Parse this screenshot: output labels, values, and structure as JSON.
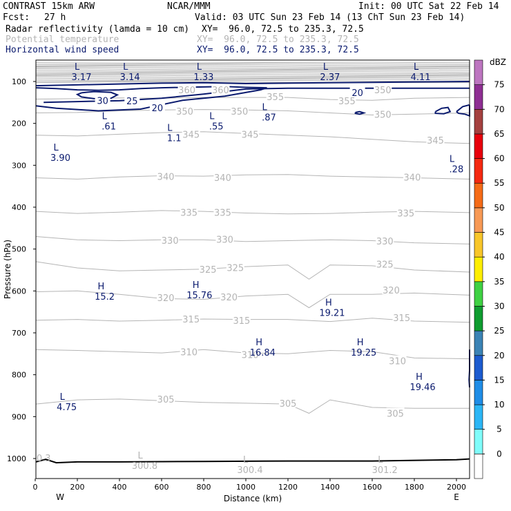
{
  "header": {
    "line1_left": "CONTRAST 15km ARW",
    "line1_center": "NCAR/MMM",
    "line1_right": "Init: 00 UTC Sat 22 Feb 14",
    "fcst_label": "Fcst:",
    "fcst_value": "27 h",
    "valid": "Valid: 03 UTC Sun 23 Feb 14 (13 ChT Sun 23 Feb 14)",
    "field1": "Radar reflectivity (lamda = 10 cm)",
    "field1_xy": "XY=  96.0, 72.5 to 235.3, 72.5",
    "field2": "Potential temperature",
    "field2_xy": "XY=  96.0, 72.5 to 235.3, 72.5",
    "field3": "Horizontal wind speed",
    "field3_xy": "XY=  96.0, 72.5 to 235.3, 72.5"
  },
  "colors": {
    "theta": "#b4b4b4",
    "wind": "#0a1a6e",
    "axis": "#000000",
    "terrain": "#000000"
  },
  "chart_data": {
    "type": "line",
    "xlabel": "Distance (km)",
    "ylabel": "Pressure (hPa)",
    "xlim": [
      0,
      2080
    ],
    "ylim": [
      1050,
      50
    ],
    "y_scale": "linear (pressure, increasing downward)",
    "x_ticks": [
      0,
      200,
      400,
      600,
      800,
      1000,
      1200,
      1400,
      1600,
      1800,
      2000
    ],
    "y_ticks": [
      100,
      200,
      300,
      400,
      500,
      600,
      700,
      800,
      900,
      1000
    ],
    "x_end_labels": {
      "left": "W",
      "right": "E"
    },
    "theta_contours": [
      {
        "name": "355",
        "x": [
          0,
          200,
          400,
          600,
          800,
          1000,
          1200,
          1400,
          1600,
          1800,
          2080
        ],
        "y": [
          142,
          141,
          139,
          140,
          138,
          138,
          138,
          143,
          145,
          140,
          138
        ]
      },
      {
        "name": "350",
        "x": [
          0,
          200,
          400,
          600,
          800,
          1000,
          1200,
          1400,
          1600,
          1800,
          2080
        ],
        "y": [
          175,
          174,
          170,
          168,
          167,
          168,
          170,
          175,
          180,
          178,
          175
        ]
      },
      {
        "name": "345",
        "x": [
          0,
          200,
          400,
          600,
          800,
          1000,
          1200,
          1400,
          1600,
          1800,
          2080
        ],
        "y": [
          228,
          230,
          226,
          222,
          220,
          224,
          228,
          232,
          238,
          244,
          248
        ]
      },
      {
        "name": "340",
        "x": [
          0,
          200,
          400,
          600,
          800,
          1000,
          1200,
          1400,
          1600,
          1800,
          2080
        ],
        "y": [
          330,
          333,
          328,
          325,
          326,
          323,
          322,
          326,
          328,
          330,
          333
        ]
      },
      {
        "name": "335",
        "x": [
          0,
          200,
          400,
          600,
          800,
          1000,
          1200,
          1400,
          1600,
          1800,
          2080
        ],
        "y": [
          410,
          415,
          412,
          408,
          410,
          414,
          416,
          415,
          412,
          410,
          413
        ]
      },
      {
        "name": "330",
        "x": [
          0,
          200,
          400,
          600,
          800,
          1000,
          1200,
          1400,
          1600,
          1800,
          2080
        ],
        "y": [
          470,
          478,
          480,
          478,
          478,
          482,
          480,
          478,
          480,
          485,
          488
        ]
      },
      {
        "name": "325",
        "x": [
          0,
          200,
          400,
          600,
          800,
          1000,
          1200,
          1300,
          1400,
          1600,
          1800,
          2080
        ],
        "y": [
          530,
          545,
          552,
          550,
          548,
          542,
          538,
          572,
          538,
          540,
          550,
          555
        ]
      },
      {
        "name": "320",
        "x": [
          0,
          200,
          400,
          600,
          800,
          1000,
          1200,
          1300,
          1400,
          1600,
          1800,
          2080
        ],
        "y": [
          602,
          600,
          608,
          618,
          620,
          612,
          608,
          640,
          608,
          608,
          605,
          610
        ]
      },
      {
        "name": "315",
        "x": [
          0,
          200,
          400,
          600,
          800,
          1000,
          1200,
          1400,
          1600,
          1800,
          2080
        ],
        "y": [
          670,
          668,
          672,
          670,
          667,
          668,
          668,
          673,
          665,
          672,
          675
        ]
      },
      {
        "name": "310",
        "x": [
          0,
          200,
          400,
          600,
          800,
          1000,
          1200,
          1400,
          1600,
          1800,
          2080
        ],
        "y": [
          740,
          742,
          745,
          748,
          740,
          748,
          750,
          742,
          745,
          760,
          762
        ]
      },
      {
        "name": "305",
        "x": [
          0,
          200,
          400,
          600,
          800,
          1000,
          1200,
          1300,
          1400,
          1600,
          1800,
          2080
        ],
        "y": [
          870,
          860,
          858,
          862,
          866,
          868,
          870,
          892,
          860,
          878,
          880,
          880
        ]
      }
    ],
    "theta_labels": [
      {
        "text": "360",
        "x": 720,
        "y": 120
      },
      {
        "text": "360",
        "x": 880,
        "y": 120
      },
      {
        "text": "355",
        "x": 1140,
        "y": 136
      },
      {
        "text": "355",
        "x": 1480,
        "y": 146
      },
      {
        "text": "350",
        "x": 1650,
        "y": 120
      },
      {
        "text": "350",
        "x": 710,
        "y": 171
      },
      {
        "text": "350",
        "x": 970,
        "y": 171
      },
      {
        "text": "350",
        "x": 1650,
        "y": 178
      },
      {
        "text": "345",
        "x": 740,
        "y": 226
      },
      {
        "text": "345",
        "x": 1020,
        "y": 226
      },
      {
        "text": "345",
        "x": 1900,
        "y": 240
      },
      {
        "text": "340",
        "x": 620,
        "y": 327
      },
      {
        "text": "340",
        "x": 890,
        "y": 329
      },
      {
        "text": "340",
        "x": 1790,
        "y": 328
      },
      {
        "text": "335",
        "x": 730,
        "y": 412
      },
      {
        "text": "335",
        "x": 890,
        "y": 412
      },
      {
        "text": "335",
        "x": 1760,
        "y": 414
      },
      {
        "text": "330",
        "x": 640,
        "y": 479
      },
      {
        "text": "330",
        "x": 900,
        "y": 477
      },
      {
        "text": "330",
        "x": 1660,
        "y": 481
      },
      {
        "text": "325",
        "x": 820,
        "y": 548
      },
      {
        "text": "325",
        "x": 950,
        "y": 544
      },
      {
        "text": "325",
        "x": 1660,
        "y": 536
      },
      {
        "text": "320",
        "x": 620,
        "y": 616
      },
      {
        "text": "320",
        "x": 920,
        "y": 614
      },
      {
        "text": "320",
        "x": 1690,
        "y": 598
      },
      {
        "text": "315",
        "x": 740,
        "y": 667
      },
      {
        "text": "315",
        "x": 980,
        "y": 670
      },
      {
        "text": "315",
        "x": 1740,
        "y": 664
      },
      {
        "text": "310",
        "x": 730,
        "y": 745
      },
      {
        "text": "310",
        "x": 1020,
        "y": 752
      },
      {
        "text": "310",
        "x": 1720,
        "y": 767
      },
      {
        "text": "305",
        "x": 620,
        "y": 858
      },
      {
        "text": "305",
        "x": 1200,
        "y": 868
      },
      {
        "text": "305",
        "x": 1710,
        "y": 892
      }
    ],
    "wind_contours": [
      {
        "name": "20",
        "x": [
          0,
          200,
          400,
          600,
          800,
          1000,
          1200,
          1400,
          1600,
          1800,
          2080
        ],
        "y": [
          110,
          108,
          106,
          104,
          103,
          105,
          104,
          103,
          102,
          101,
          100
        ]
      },
      {
        "name": "20",
        "x": [
          0,
          100,
          200,
          300,
          400,
          500,
          600,
          700,
          800,
          900,
          1000,
          1100,
          1070,
          900,
          700,
          500,
          300,
          100,
          0
        ],
        "y": [
          115,
          117,
          120,
          121,
          120,
          117,
          115,
          114,
          113,
          112,
          114,
          115,
          120,
          135,
          145,
          166,
          170,
          164,
          158
        ]
      },
      {
        "name": "25",
        "x": [
          40,
          200,
          400,
          600,
          800,
          1000,
          1200,
          1400,
          1600,
          1800,
          2080
        ],
        "y": [
          150,
          148,
          146,
          140,
          130,
          118,
          116,
          116,
          116,
          116,
          116
        ]
      },
      {
        "name": "30",
        "x": [
          220,
          280,
          360,
          390,
          360,
          280,
          220,
          200,
          220
        ],
        "y": [
          127,
          124,
          126,
          132,
          140,
          141,
          137,
          131,
          127
        ]
      },
      {
        "name": "20",
        "x": [
          1520,
          1540,
          1560,
          1540,
          1520,
          1520
        ],
        "y": [
          174,
          172,
          175,
          178,
          176,
          174
        ]
      },
      {
        "name": "20",
        "x": [
          1900,
          1930,
          1960,
          1970,
          1940,
          1900,
          1900
        ],
        "y": [
          172,
          164,
          162,
          172,
          177,
          176,
          172
        ]
      },
      {
        "name": "20",
        "x": [
          2000,
          2030,
          2060,
          2080,
          2080,
          2040,
          2010,
          2000
        ],
        "y": [
          172,
          160,
          156,
          158,
          182,
          178,
          176,
          172
        ]
      },
      {
        "name": "20",
        "x": [
          2080,
          2070,
          2060,
          2080
        ],
        "y": [
          740,
          790,
          812,
          830
        ]
      }
    ],
    "wind_labels": [
      {
        "text": "30",
        "x": 320,
        "y": 145
      },
      {
        "text": "25",
        "x": 460,
        "y": 146
      },
      {
        "text": "20",
        "x": 580,
        "y": 163
      },
      {
        "text": "20",
        "x": 1530,
        "y": 126
      }
    ],
    "extrema": [
      {
        "type": "L",
        "value": "3.17",
        "x": 200,
        "y": 72
      },
      {
        "type": "L",
        "value": "3.14",
        "x": 430,
        "y": 72
      },
      {
        "type": "L",
        "value": "1.33",
        "x": 780,
        "y": 72
      },
      {
        "type": "L",
        "value": "2.37",
        "x": 1380,
        "y": 72
      },
      {
        "type": "L",
        "value": "4.11",
        "x": 1810,
        "y": 72
      },
      {
        "type": "L",
        "value": ".61",
        "x": 330,
        "y": 190
      },
      {
        "type": "L",
        "value": "1.1",
        "x": 640,
        "y": 218
      },
      {
        "type": "L",
        "value": ".55",
        "x": 840,
        "y": 190
      },
      {
        "type": "L",
        "value": ".87",
        "x": 1090,
        "y": 168
      },
      {
        "type": "L",
        "value": "3.90",
        "x": 100,
        "y": 265
      },
      {
        "type": "L",
        "value": ".28",
        "x": 1980,
        "y": 292
      },
      {
        "type": "H",
        "value": "15.2",
        "x": 310,
        "y": 596
      },
      {
        "type": "H",
        "value": "15.76",
        "x": 760,
        "y": 593
      },
      {
        "type": "H",
        "value": "19.21",
        "x": 1390,
        "y": 635
      },
      {
        "type": "H",
        "value": "16.84",
        "x": 1060,
        "y": 730
      },
      {
        "type": "H",
        "value": "19.25",
        "x": 1540,
        "y": 730
      },
      {
        "type": "H",
        "value": "19.46",
        "x": 1820,
        "y": 812
      },
      {
        "type": "L",
        "value": "4.75",
        "x": 130,
        "y": 860
      },
      {
        "type": "L",
        "value": "300.8",
        "x": 500,
        "y": 1000,
        "field": "theta"
      },
      {
        "type": "L",
        "value": "300.4",
        "x": 1000,
        "y": 1010,
        "field": "theta"
      },
      {
        "type": "L",
        "value": "301.2",
        "x": 1640,
        "y": 1010,
        "field": "theta"
      }
    ],
    "edge_labels": [
      {
        "text": "0.3",
        "x": 40,
        "y": 998
      }
    ],
    "terrain": {
      "x": [
        0,
        50,
        100,
        200,
        400,
        800,
        1200,
        1600,
        2000,
        2080
      ],
      "y": [
        1008,
        1002,
        1010,
        1008,
        1008,
        1007,
        1006,
        1006,
        1003,
        1001
      ]
    },
    "stratosphere_band": {
      "y_top": 50,
      "y_bottom": 105,
      "theta_min": 365,
      "theta_step": 5
    },
    "colorbar": {
      "unit": "dBZ",
      "levels": [
        0,
        5,
        10,
        15,
        20,
        25,
        30,
        35,
        40,
        45,
        50,
        55,
        60,
        65,
        70,
        75
      ],
      "colors": [
        "#ffffff",
        "#7ffcfa",
        "#2cb6f5",
        "#1f8de6",
        "#1c5bcf",
        "#3b83b5",
        "#0f9c30",
        "#3fd143",
        "#fdee00",
        "#f8c62a",
        "#f79955",
        "#f56b17",
        "#f42911",
        "#e8000c",
        "#a4403f",
        "#8e2e92",
        "#bd75c0"
      ]
    }
  }
}
